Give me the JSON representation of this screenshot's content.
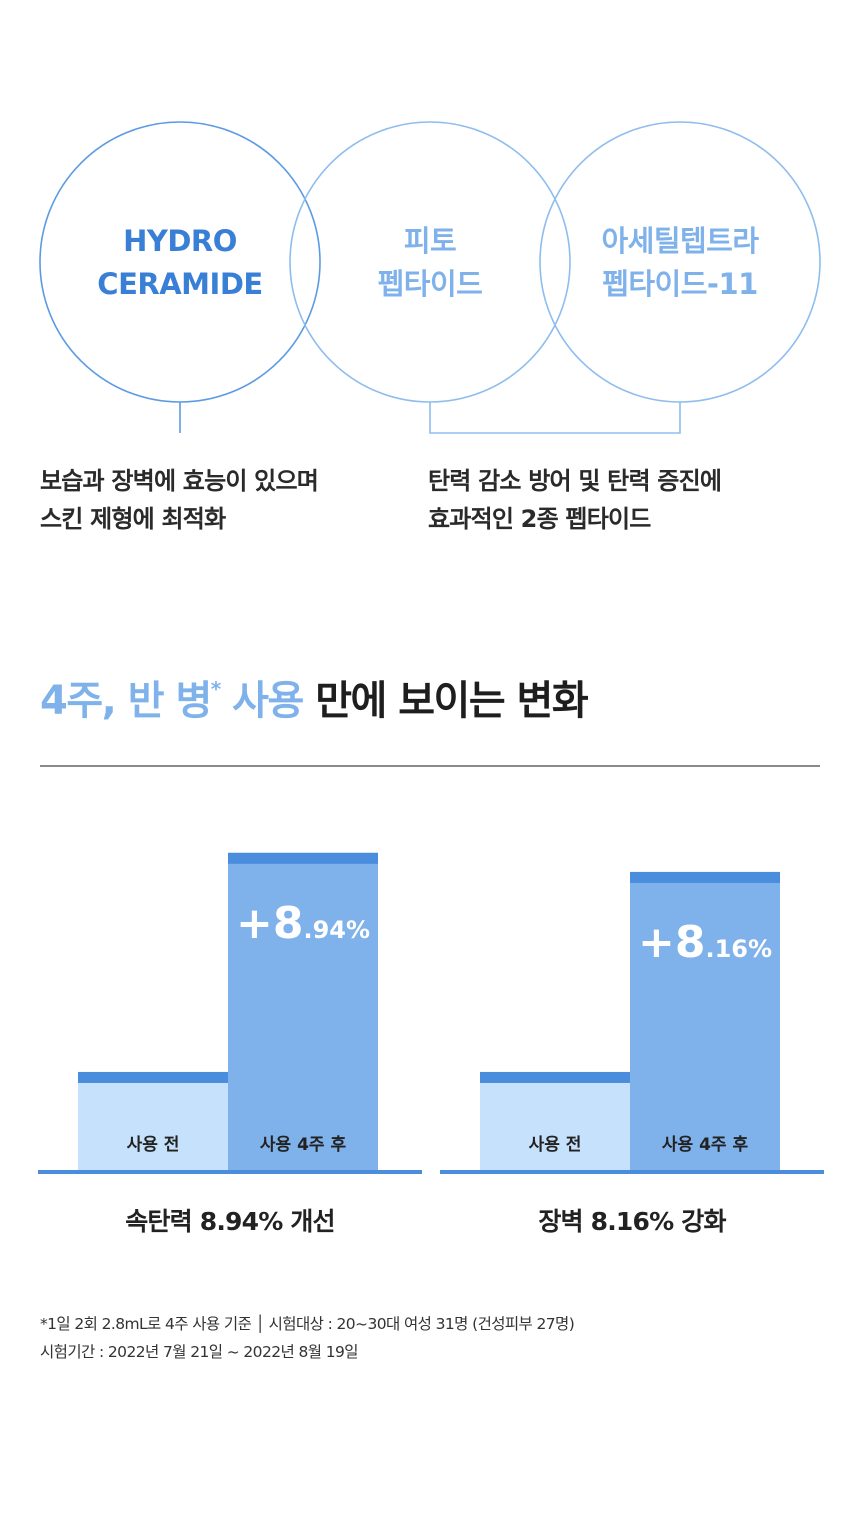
{
  "ingredients": [
    {
      "line1": "HYDRO",
      "line2": "CERAMIDE",
      "color": "#3a7fd6"
    },
    {
      "line1": "피토",
      "line2": "펩타이드",
      "color": "#7fb2eb"
    },
    {
      "line1": "아세틸텝트라",
      "line2": "펩타이드-11",
      "color": "#7fb2eb"
    }
  ],
  "descriptions": {
    "left": {
      "line1": "보습과 장벽에 효능이 있으며",
      "line2": "스킨 제형에 최적화"
    },
    "right": {
      "line1": "탄력 감소 방어 및 탄력 증진에",
      "line2": "효과적인 2종 펩타이드"
    }
  },
  "headline": {
    "highlight_part1": "4주, 반 병",
    "asterisk": "*",
    "highlight_part2": " 사용",
    "rest": " 만에 보이는 변화"
  },
  "colors": {
    "accent": "#7fb2eb",
    "primary_blue": "#3a7fd6",
    "bar_before": "#c6e1fb",
    "bar_after": "#7fb1ea",
    "bar_cap": "#4a8ddd",
    "baseline": "#4a8ddd"
  },
  "chart_data": [
    {
      "type": "bar",
      "categories": [
        "사용 전",
        "사용 4주 후"
      ],
      "values": [
        100,
        108.94
      ],
      "annotation": {
        "plus": "+8",
        "decimal": ".94%"
      },
      "caption": "속탄력 8.94% 개선"
    },
    {
      "type": "bar",
      "categories": [
        "사용 전",
        "사용 4주 후"
      ],
      "values": [
        100,
        108.16
      ],
      "annotation": {
        "plus": "+8",
        "decimal": ".16%"
      },
      "caption": "장벽 8.16% 강화"
    }
  ],
  "footnote": {
    "line1": "*1일 2회 2.8mL로 4주 사용 기준 │ 시험대상 : 20~30대 여성 31명 (건성피부 27명)",
    "line2": "시험기간 : 2022년 7월 21일 ~ 2022년 8월 19일"
  }
}
